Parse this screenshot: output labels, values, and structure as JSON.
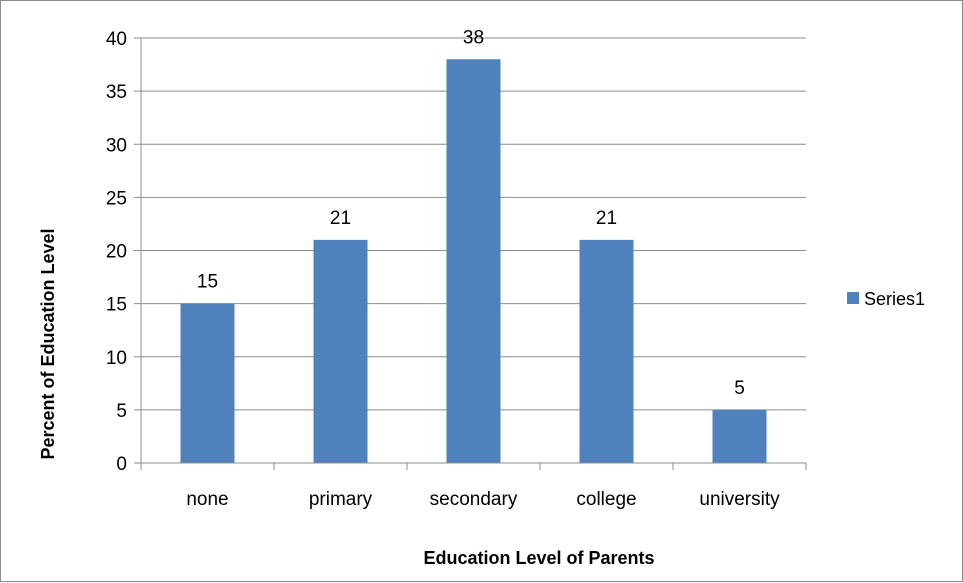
{
  "chart_data": {
    "type": "bar",
    "categories": [
      "none",
      "primary",
      "secondary",
      "college",
      "university"
    ],
    "series": [
      {
        "name": "Series1",
        "values": [
          15,
          21,
          38,
          21,
          5
        ],
        "color": "#4f81bd"
      }
    ],
    "data_labels": [
      "15",
      "21",
      "38",
      "21",
      "5"
    ],
    "title": "",
    "xlabel": "Education Level of Parents",
    "ylabel": "Percent of Education Level",
    "ylim": [
      0,
      40
    ],
    "yticks": [
      0,
      5,
      10,
      15,
      20,
      25,
      30,
      35,
      40
    ],
    "grid": true,
    "legend_position": "right"
  }
}
